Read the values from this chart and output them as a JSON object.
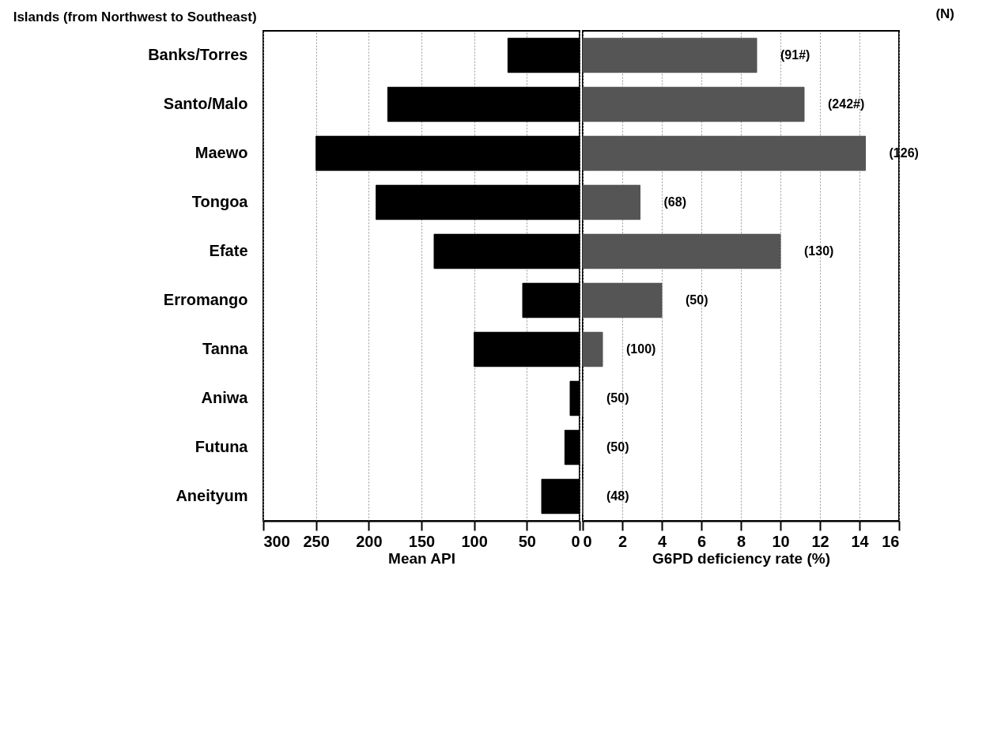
{
  "chart_data": [
    {
      "type": "bar",
      "orientation": "horizontal",
      "title": "Islands (from Northwest to Southeast)",
      "xlabel": "Mean API",
      "categories": [
        "Banks/Torres",
        "Santo/Malo",
        "Maewo",
        "Tongoa",
        "Efate",
        "Erromango",
        "Tanna",
        "Aniwa",
        "Futuna",
        "Aneityum"
      ],
      "values": [
        68,
        182,
        250,
        193,
        138,
        54,
        100,
        9,
        14,
        36
      ],
      "color": "#000000",
      "xlim": [
        300,
        0
      ],
      "xticks": [
        300,
        250,
        200,
        150,
        100,
        50,
        0
      ],
      "grid": "x"
    },
    {
      "type": "bar",
      "orientation": "horizontal",
      "xlabel": "G6PD deficiency rate (%)",
      "categories": [
        "Banks/Torres",
        "Santo/Malo",
        "Maewo",
        "Tongoa",
        "Efate",
        "Erromango",
        "Tanna",
        "Aniwa",
        "Futuna",
        "Aneityum"
      ],
      "values": [
        8.8,
        11.2,
        14.3,
        2.9,
        10.0,
        4.0,
        1.0,
        0,
        0,
        0
      ],
      "color": "#555555",
      "xlim": [
        0,
        16
      ],
      "xticks": [
        0,
        2,
        4,
        6,
        8,
        10,
        12,
        14,
        16
      ],
      "grid": "x",
      "tick_labels": "x",
      "annotations": [
        "(N)",
        {
          "text": "(91#)",
          "x": 8.8,
          "y": "Banks/Torres"
        },
        {
          "text": "(242#)",
          "x": 11.2,
          "y": "Santo/Malo"
        },
        {
          "text": "(126)",
          "x": 14.3,
          "y": "Maewo"
        },
        {
          "text": "(68)",
          "x": 2.9,
          "y": "Tongoa"
        },
        {
          "text": "(130)",
          "x": 10.0,
          "y": "Efate"
        },
        {
          "text": "(50)",
          "x": 4.0,
          "y": "Erromango"
        },
        {
          "text": "(100)",
          "x": 1.0,
          "y": "Tanna"
        },
        {
          "text": "(50)",
          "x": 0,
          "y": "Aniwa"
        },
        {
          "text": "(50)",
          "x": 0,
          "y": "Futuna"
        },
        {
          "text": "(48)",
          "x": 0,
          "y": "Aneityum"
        }
      ]
    }
  ]
}
